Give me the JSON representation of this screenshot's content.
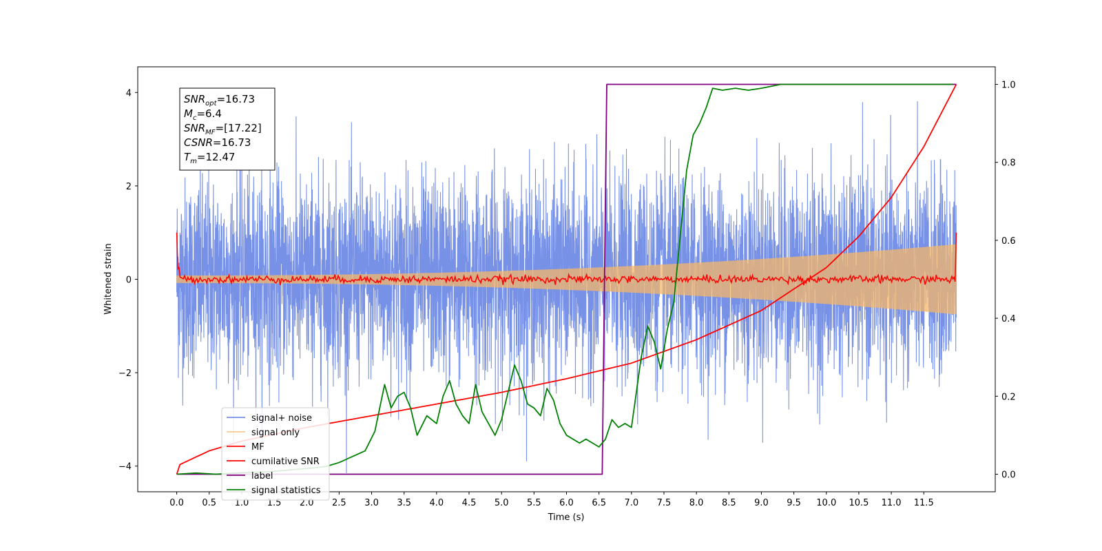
{
  "chart_data": {
    "type": "line",
    "title": "",
    "xlabel": "Time (s)",
    "ylabel": "Whitened strain",
    "xlim": [
      -0.6,
      12.6
    ],
    "ylim": [
      -4.55,
      4.55
    ],
    "y2lim": [
      -0.045,
      1.045
    ],
    "x_ticks": [
      0.0,
      0.5,
      1.0,
      1.5,
      2.0,
      2.5,
      3.0,
      3.5,
      4.0,
      4.5,
      5.0,
      5.5,
      6.0,
      6.5,
      7.0,
      7.5,
      8.0,
      8.5,
      9.0,
      9.5,
      10.0,
      10.5,
      11.0,
      11.5
    ],
    "x_tick_labels": [
      "0.0",
      "0.5",
      "1.0",
      "1.5",
      "2.0",
      "2.5",
      "3.0",
      "3.5",
      "4.0",
      "4.5",
      "5.0",
      "5.5",
      "6.0",
      "6.5",
      "7.0",
      "7.5",
      "8.0",
      "8.5",
      "9.0",
      "9.5",
      "10.0",
      "10.5",
      "11.0",
      "11.5"
    ],
    "y_ticks": [
      -4,
      -2,
      0,
      2,
      4
    ],
    "y_tick_labels": [
      "−4",
      "−2",
      "0",
      "2",
      "4"
    ],
    "y2_ticks": [
      0.0,
      0.2,
      0.4,
      0.6,
      0.8,
      1.0
    ],
    "y2_tick_labels": [
      "0.0",
      "0.2",
      "0.4",
      "0.6",
      "0.8",
      "1.0"
    ],
    "grid": false,
    "legend_position": "lower-left",
    "info_box": {
      "position": "top-left",
      "lines": [
        {
          "base": "SNR",
          "sub": "opt",
          "rest": "=16.73"
        },
        {
          "base": "M",
          "sub": "c",
          "rest": "=6.4"
        },
        {
          "base": "SNR",
          "sub": "MF",
          "rest": "=[17.22]"
        },
        {
          "base": "CSNR",
          "sub": "",
          "rest": "=16.73"
        },
        {
          "base": "T",
          "sub": "m",
          "rest": "=12.47"
        }
      ]
    },
    "series": [
      {
        "name": "signal+ noise",
        "axis": "left",
        "color": "#6b88e4",
        "kind": "noise",
        "x_range": [
          0,
          12
        ],
        "noise_std": 1.05,
        "max": 4.1,
        "min": -4.15
      },
      {
        "name": "signal only",
        "axis": "left",
        "color": "#f5b769",
        "kind": "chirp",
        "x_range": [
          0,
          12
        ],
        "amplitude_start": 0.08,
        "amplitude_end": 0.75
      },
      {
        "name": "MF",
        "axis": "left",
        "color": "#ff0000",
        "kind": "mf",
        "x_range": [
          0,
          12
        ],
        "start_value": 1.0,
        "end_value": 1.0,
        "noise_std": 0.04
      },
      {
        "name": "cumilative SNR",
        "axis": "right",
        "color": "#ff0000",
        "x": [
          0.0,
          0.05,
          0.5,
          1.0,
          2.0,
          3.0,
          4.0,
          5.0,
          6.0,
          7.0,
          8.0,
          9.0,
          10.0,
          10.5,
          11.0,
          11.5,
          12.0
        ],
        "y": [
          0.0,
          0.025,
          0.06,
          0.085,
          0.12,
          0.15,
          0.18,
          0.21,
          0.245,
          0.285,
          0.345,
          0.42,
          0.53,
          0.61,
          0.71,
          0.84,
          1.0
        ]
      },
      {
        "name": "label",
        "axis": "right",
        "color": "#800080",
        "x": [
          0.0,
          6.55,
          6.62,
          12.0
        ],
        "y": [
          0.0,
          0.0,
          1.0,
          1.0
        ]
      },
      {
        "name": "signal statistics",
        "axis": "right",
        "color": "#008000",
        "x": [
          0.0,
          0.3,
          0.6,
          1.0,
          1.4,
          1.8,
          2.1,
          2.3,
          2.5,
          2.7,
          2.9,
          3.05,
          3.2,
          3.3,
          3.4,
          3.5,
          3.6,
          3.7,
          3.85,
          4.0,
          4.1,
          4.2,
          4.3,
          4.4,
          4.5,
          4.6,
          4.7,
          4.8,
          4.9,
          5.0,
          5.1,
          5.2,
          5.3,
          5.4,
          5.5,
          5.6,
          5.7,
          5.8,
          5.9,
          6.0,
          6.1,
          6.2,
          6.3,
          6.4,
          6.5,
          6.6,
          6.7,
          6.8,
          6.9,
          7.0,
          7.15,
          7.25,
          7.35,
          7.45,
          7.55,
          7.65,
          7.75,
          7.85,
          7.95,
          8.05,
          8.15,
          8.25,
          8.4,
          8.6,
          8.8,
          9.0,
          9.3,
          9.6,
          10.0,
          10.5,
          11.0,
          11.5,
          11.95
        ],
        "y": [
          0.0,
          0.003,
          0.0,
          0.004,
          0.006,
          0.012,
          0.016,
          0.02,
          0.03,
          0.045,
          0.06,
          0.11,
          0.23,
          0.17,
          0.2,
          0.21,
          0.17,
          0.1,
          0.15,
          0.13,
          0.2,
          0.24,
          0.18,
          0.15,
          0.13,
          0.23,
          0.16,
          0.13,
          0.1,
          0.14,
          0.21,
          0.28,
          0.24,
          0.18,
          0.17,
          0.15,
          0.22,
          0.19,
          0.13,
          0.1,
          0.09,
          0.08,
          0.09,
          0.08,
          0.07,
          0.09,
          0.14,
          0.12,
          0.13,
          0.12,
          0.3,
          0.38,
          0.34,
          0.27,
          0.37,
          0.44,
          0.61,
          0.78,
          0.87,
          0.9,
          0.94,
          0.99,
          0.985,
          0.99,
          0.985,
          0.99,
          1.0,
          1.0,
          1.0,
          1.0,
          1.0,
          1.0,
          1.0
        ]
      }
    ]
  }
}
